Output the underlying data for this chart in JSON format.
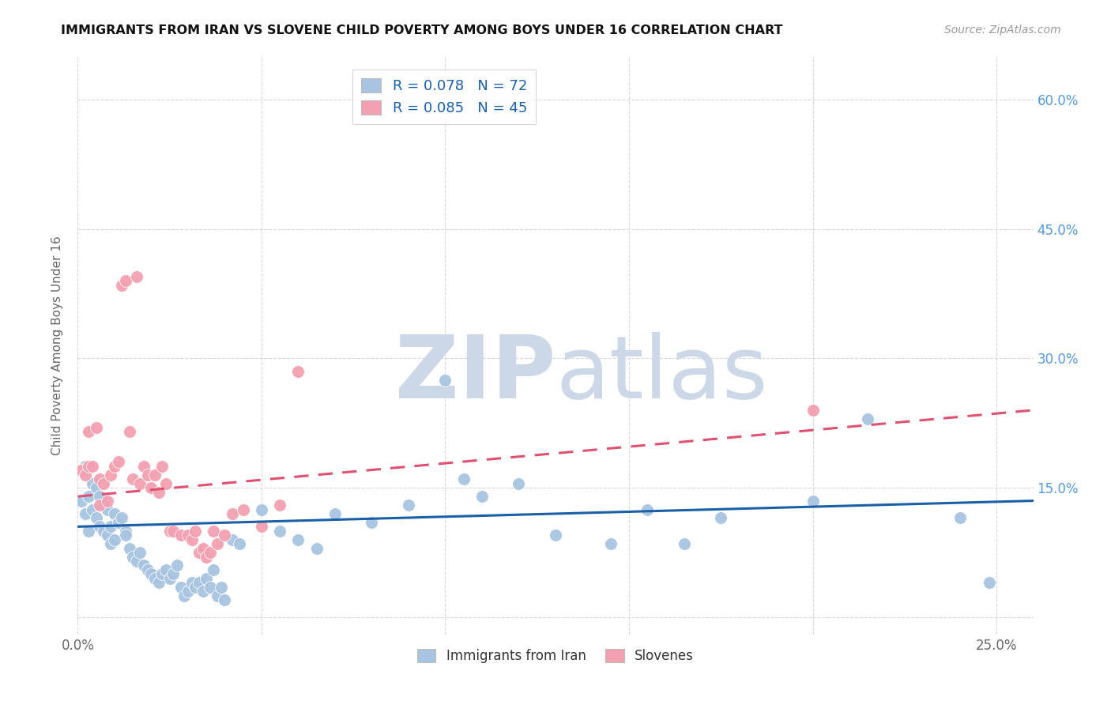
{
  "title": "IMMIGRANTS FROM IRAN VS SLOVENE CHILD POVERTY AMONG BOYS UNDER 16 CORRELATION CHART",
  "source": "Source: ZipAtlas.com",
  "ylabel_label": "Child Poverty Among Boys Under 16",
  "xlim": [
    0.0,
    0.26
  ],
  "ylim": [
    -0.02,
    0.65
  ],
  "x_ticks": [
    0.0,
    0.05,
    0.1,
    0.15,
    0.2,
    0.25
  ],
  "x_tick_labels": [
    "0.0%",
    "",
    "",
    "",
    "",
    "25.0%"
  ],
  "y_ticks": [
    0.0,
    0.15,
    0.3,
    0.45,
    0.6
  ],
  "y_tick_labels_right": [
    "",
    "15.0%",
    "30.0%",
    "45.0%",
    "60.0%"
  ],
  "iran_R": 0.078,
  "iran_N": 72,
  "slovene_R": 0.085,
  "slovene_N": 45,
  "iran_color": "#a8c4e0",
  "slovene_color": "#f4a0b0",
  "iran_line_color": "#1a5fa8",
  "slovene_line_color": "#e05070",
  "background_color": "#ffffff",
  "grid_color": "#d8d8d8",
  "watermark_zip": "ZIP",
  "watermark_atlas": "atlas",
  "watermark_color": "#ccd8e8",
  "iran_scatter_x": [
    0.001,
    0.002,
    0.002,
    0.003,
    0.003,
    0.004,
    0.004,
    0.005,
    0.005,
    0.006,
    0.006,
    0.007,
    0.007,
    0.008,
    0.008,
    0.009,
    0.009,
    0.01,
    0.01,
    0.011,
    0.012,
    0.013,
    0.013,
    0.014,
    0.015,
    0.016,
    0.017,
    0.018,
    0.019,
    0.02,
    0.021,
    0.022,
    0.023,
    0.024,
    0.025,
    0.026,
    0.027,
    0.028,
    0.029,
    0.03,
    0.031,
    0.032,
    0.033,
    0.034,
    0.035,
    0.036,
    0.037,
    0.038,
    0.039,
    0.04,
    0.042,
    0.044,
    0.05,
    0.055,
    0.06,
    0.065,
    0.07,
    0.08,
    0.09,
    0.1,
    0.105,
    0.11,
    0.12,
    0.13,
    0.145,
    0.155,
    0.165,
    0.175,
    0.2,
    0.215,
    0.24,
    0.248
  ],
  "iran_scatter_y": [
    0.135,
    0.175,
    0.12,
    0.14,
    0.1,
    0.155,
    0.125,
    0.15,
    0.115,
    0.14,
    0.105,
    0.13,
    0.1,
    0.125,
    0.095,
    0.105,
    0.085,
    0.12,
    0.09,
    0.11,
    0.115,
    0.1,
    0.095,
    0.08,
    0.07,
    0.065,
    0.075,
    0.06,
    0.055,
    0.05,
    0.045,
    0.04,
    0.05,
    0.055,
    0.045,
    0.05,
    0.06,
    0.035,
    0.025,
    0.03,
    0.04,
    0.035,
    0.04,
    0.03,
    0.045,
    0.035,
    0.055,
    0.025,
    0.035,
    0.02,
    0.09,
    0.085,
    0.125,
    0.1,
    0.09,
    0.08,
    0.12,
    0.11,
    0.13,
    0.275,
    0.16,
    0.14,
    0.155,
    0.095,
    0.085,
    0.125,
    0.085,
    0.115,
    0.135,
    0.23,
    0.115,
    0.04
  ],
  "slovene_scatter_x": [
    0.001,
    0.002,
    0.003,
    0.003,
    0.004,
    0.005,
    0.006,
    0.006,
    0.007,
    0.008,
    0.009,
    0.01,
    0.011,
    0.012,
    0.013,
    0.014,
    0.015,
    0.016,
    0.017,
    0.018,
    0.019,
    0.02,
    0.021,
    0.022,
    0.023,
    0.024,
    0.025,
    0.026,
    0.028,
    0.03,
    0.031,
    0.032,
    0.033,
    0.034,
    0.035,
    0.036,
    0.037,
    0.038,
    0.04,
    0.042,
    0.045,
    0.05,
    0.055,
    0.06,
    0.2
  ],
  "slovene_scatter_y": [
    0.17,
    0.165,
    0.215,
    0.175,
    0.175,
    0.22,
    0.16,
    0.13,
    0.155,
    0.135,
    0.165,
    0.175,
    0.18,
    0.385,
    0.39,
    0.215,
    0.16,
    0.395,
    0.155,
    0.175,
    0.165,
    0.15,
    0.165,
    0.145,
    0.175,
    0.155,
    0.1,
    0.1,
    0.095,
    0.095,
    0.09,
    0.1,
    0.075,
    0.08,
    0.07,
    0.075,
    0.1,
    0.085,
    0.095,
    0.12,
    0.125,
    0.105,
    0.13,
    0.285,
    0.24
  ],
  "iran_trendline_x": [
    0.0,
    0.26
  ],
  "iran_trendline_y": [
    0.105,
    0.135
  ],
  "slovene_trendline_x": [
    0.0,
    0.26
  ],
  "slovene_trendline_y": [
    0.14,
    0.24
  ]
}
